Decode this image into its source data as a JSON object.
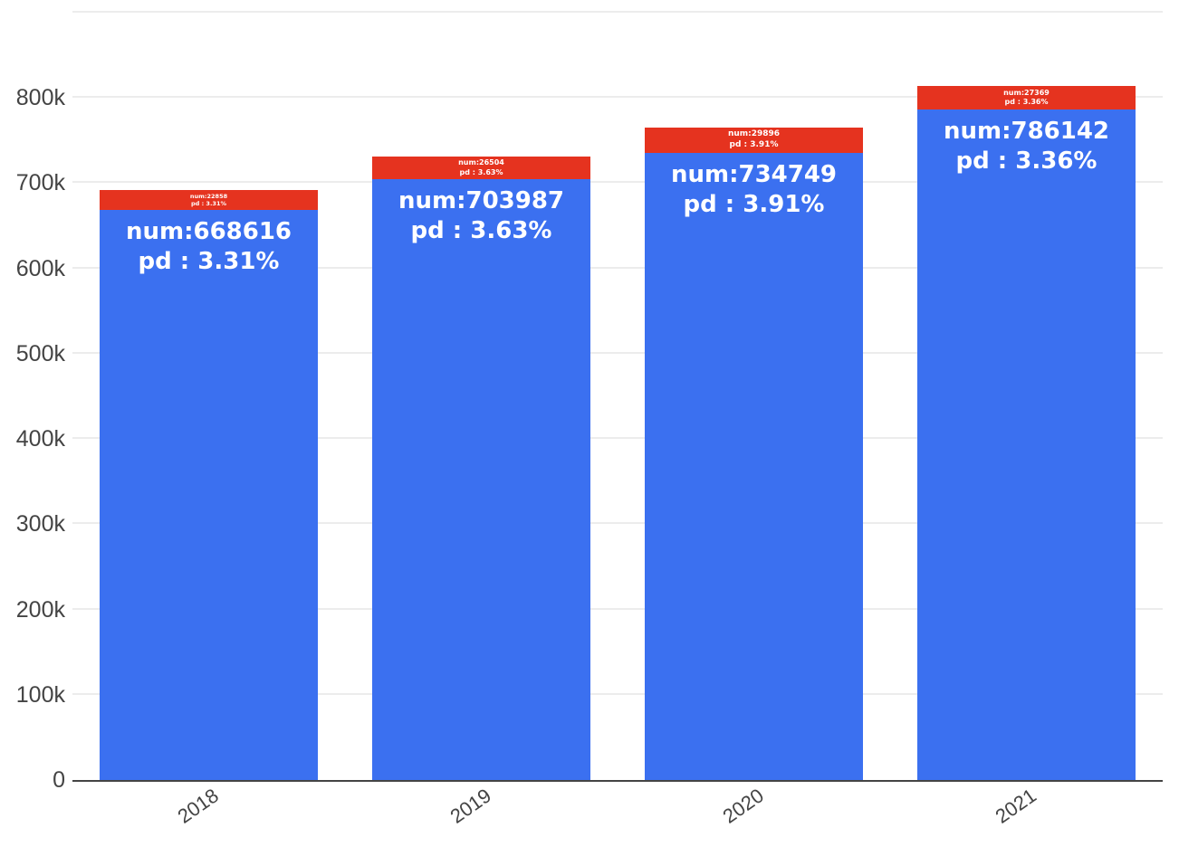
{
  "chart_data": {
    "type": "bar",
    "stacked": true,
    "title": "",
    "xlabel": "",
    "ylabel": "",
    "categories": [
      "2018",
      "2019",
      "2020",
      "2021"
    ],
    "series": [
      {
        "name": "num (blue base segment)",
        "color": "#3b70f0",
        "values": [
          668616,
          703987,
          734749,
          786142
        ]
      },
      {
        "name": "increment (red top segment)",
        "color": "#e5331f",
        "values": [
          22858,
          26504,
          29896,
          27369
        ]
      }
    ],
    "pd_percent": [
      "3.31%",
      "3.63%",
      "3.91%",
      "3.36%"
    ],
    "ylim": [
      0,
      915000
    ],
    "grid": true,
    "legend_position": "none",
    "yticks": [
      {
        "label": "0",
        "value": 0
      },
      {
        "label": "100k",
        "value": 100000
      },
      {
        "label": "200k",
        "value": 200000
      },
      {
        "label": "300k",
        "value": 300000
      },
      {
        "label": "400k",
        "value": 400000
      },
      {
        "label": "500k",
        "value": 500000
      },
      {
        "label": "600k",
        "value": 600000
      },
      {
        "label": "700k",
        "value": 700000
      },
      {
        "label": "800k",
        "value": 800000
      }
    ],
    "extra_gridline_values": [
      900000
    ]
  },
  "bars": [
    {
      "category": "2018",
      "blue_line1": "num:668616",
      "blue_line2": "pd : 3.31%",
      "red_line1": "num:22858",
      "red_line2": "pd : 3.31%"
    },
    {
      "category": "2019",
      "blue_line1": "num:703987",
      "blue_line2": "pd : 3.63%",
      "red_line1": "num:26504",
      "red_line2": "pd : 3.63%"
    },
    {
      "category": "2020",
      "blue_line1": "num:734749",
      "blue_line2": "pd : 3.91%",
      "red_line1": "num:29896",
      "red_line2": "pd : 3.91%"
    },
    {
      "category": "2021",
      "blue_line1": "num:786142",
      "blue_line2": "pd : 3.36%",
      "red_line1": "num:27369",
      "red_line2": "pd : 3.36%"
    }
  ],
  "colors": {
    "bar_blue": "#3b70f0",
    "bar_red": "#e5331f",
    "gridline": "#ececec",
    "axis_line": "#444444",
    "tick_text": "#444444",
    "bar_label_text": "#ffffff",
    "background": "#ffffff"
  }
}
